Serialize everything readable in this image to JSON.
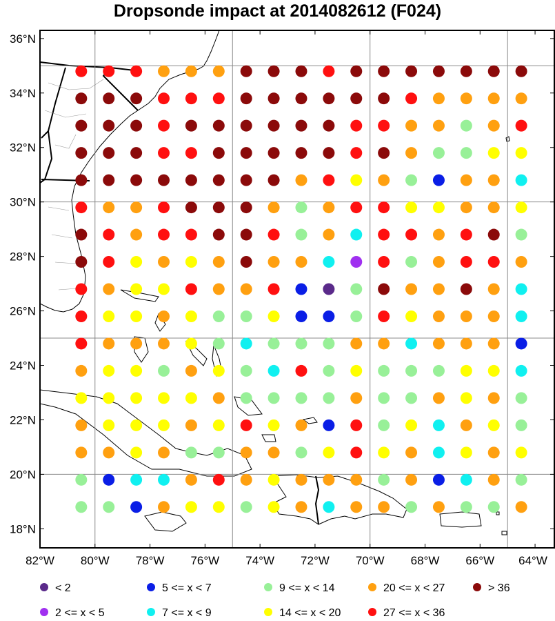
{
  "title": "Dropsonde impact at 2014082612 (F024)",
  "axes": {
    "lon_ticks": [
      "82°W",
      "80°W",
      "78°W",
      "76°W",
      "74°W",
      "72°W",
      "70°W",
      "68°W",
      "66°W",
      "64°W"
    ],
    "lat_ticks": [
      "36°N",
      "34°N",
      "32°N",
      "30°N",
      "28°N",
      "26°N",
      "24°N",
      "22°N",
      "20°N",
      "18°N"
    ],
    "lon_range": [
      -82,
      -63.3
    ],
    "lat_range": [
      17.3,
      36.3
    ],
    "grid_lon": [
      -80,
      -75,
      -70,
      -65
    ],
    "grid_lat": [
      35,
      30,
      25,
      20
    ]
  },
  "legend": {
    "items": [
      {
        "label": "<  2",
        "color": "#5a2a8a"
      },
      {
        "label": "5 <= x <  7",
        "color": "#0a1ee6"
      },
      {
        "label": "9 <= x < 14",
        "color": "#98f098"
      },
      {
        "label": "20 <= x < 27",
        "color": "#ffa010"
      },
      {
        "label": "> 36",
        "color": "#8b0a0a"
      },
      {
        "label": "2 <= x <  5",
        "color": "#a030f0"
      },
      {
        "label": "7 <= x <  9",
        "color": "#10f0f0"
      },
      {
        "label": "14 <= x < 20",
        "color": "#ffff00"
      },
      {
        "label": "27 <= x < 36",
        "color": "#ff1010"
      }
    ]
  },
  "chart_data": {
    "type": "scatter",
    "title": "Dropsonde impact at 2014082612 (F024)",
    "x_values_lon": [
      -80.5,
      -79.5,
      -78.5,
      -77.5,
      -76.5,
      -75.5,
      -74.5,
      -73.5,
      -72.5,
      -71.5,
      -70.5,
      -69.5,
      -68.5,
      -67.5,
      -66.5,
      -65.5,
      -64.5
    ],
    "y_values_lat": [
      34.8,
      33.8,
      32.8,
      31.8,
      30.8,
      29.8,
      28.8,
      27.8,
      26.8,
      25.8,
      24.8,
      23.8,
      22.8,
      21.8,
      20.8,
      19.8,
      18.8
    ],
    "color_key": {
      "P": "< 2",
      "V": "2 <= x < 5",
      "B": "5 <= x < 7",
      "C": "7 <= x < 9",
      "G": "9 <= x < 14",
      "Y": "14 <= x < 20",
      "O": "20 <= x < 27",
      "R": "27 <= x < 36",
      "D": "> 36"
    },
    "category_rows": [
      "RRROOODDDRDDDDDDD",
      "DDDRRRDDDDDDROOOO",
      "DDDRDDDDDDRROOGOR",
      "DDDRRDDDDDRDOGGYY",
      "DDDDDDDDORYOGBOOC",
      "ROORDDDOGORRYYOOY",
      "DRORRDDRGOCRRORDG",
      "DRYOYODOOCVRGORRO",
      "ROYYROORBPGDOODOC",
      "RYYOYGGYBBGRYOOOC",
      "ROOOYGCGGGOOCOOOB",
      "OYYGOYGCRGYGGGYYC",
      "YYYYYOGGGGOGGOYOG",
      "OYYYOYRYOBRGYCOYG",
      "OOYOGGOOGYRYOCYOY",
      "GBCCOROYOOOGOBCOG",
      "GGBOYYGYOCOOGOGGO"
    ]
  }
}
